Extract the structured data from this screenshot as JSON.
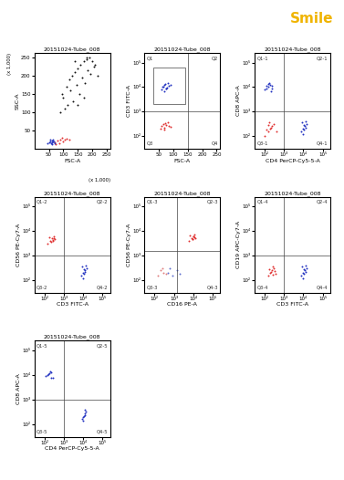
{
  "decoration_text": "Smile",
  "chart_data": [
    {
      "type": "scatter",
      "title": "20151024-Tube_008",
      "x_label": "FSC-A",
      "y_label": "SSC-A",
      "unit_label": "(x 1,000)",
      "log": false,
      "grid": false,
      "xlim": [
        0,
        262
      ],
      "ylim": [
        0,
        262
      ],
      "xticks": [
        50,
        100,
        150,
        200,
        250
      ],
      "yticks": [
        50,
        100,
        150,
        200,
        250
      ],
      "series": [
        {
          "color": "#111111",
          "x": [
            95,
            110,
            120,
            130,
            140,
            150,
            160,
            170,
            180,
            190,
            200,
            210,
            125,
            145,
            165,
            185,
            205,
            135,
            155,
            175,
            195,
            115,
            105,
            170,
            150,
            220,
            90,
            100,
            140,
            180
          ],
          "y": [
            150,
            170,
            190,
            200,
            210,
            220,
            230,
            240,
            245,
            250,
            240,
            230,
            160,
            175,
            195,
            215,
            225,
            130,
            150,
            180,
            205,
            120,
            110,
            140,
            120,
            200,
            100,
            140,
            240,
            250
          ]
        },
        {
          "color": "#e03030",
          "x": [
            70,
            80,
            90,
            100,
            110,
            85,
            95,
            75,
            105,
            120
          ],
          "y": [
            18,
            22,
            25,
            20,
            28,
            15,
            30,
            12,
            24,
            26
          ]
        },
        {
          "color": "#2030c0",
          "x": [
            45,
            50,
            55,
            58,
            60,
            62,
            65,
            68,
            70,
            55,
            60,
            65
          ],
          "y": [
            15,
            18,
            20,
            14,
            22,
            17,
            19,
            21,
            16,
            24,
            12,
            26
          ]
        }
      ]
    },
    {
      "type": "scatter",
      "title": "20151024-Tube_008",
      "x_label": "FSC-A",
      "y_label": "CD3 FITC-A",
      "log": "y",
      "grid": false,
      "xlim": [
        0,
        262
      ],
      "ylim": [
        30,
        250000
      ],
      "xticks": [
        50,
        100,
        150,
        200,
        250
      ],
      "yticks": [
        {
          "value": 100,
          "label": "10²"
        },
        {
          "value": 1000,
          "label": "10³"
        },
        {
          "value": 10000,
          "label": "10⁴"
        },
        {
          "value": 100000,
          "label": "10⁵"
        }
      ],
      "quadrant": [
        150,
        1000
      ],
      "gate": {
        "x": [
          30,
          140
        ],
        "y": [
          2000,
          60000
        ]
      },
      "quadrant_labels": [
        "Q1",
        "Q2",
        "Q3",
        "Q4"
      ],
      "series": [
        {
          "color": "#2030c0",
          "x": [
            60,
            65,
            70,
            75,
            80,
            85,
            68,
            72,
            78,
            62,
            90,
            74
          ],
          "y": [
            8000,
            10000,
            12000,
            9000,
            15000,
            11000,
            7000,
            13000,
            9500,
            10500,
            12500,
            8500
          ]
        },
        {
          "color": "#e03030",
          "x": [
            55,
            60,
            65,
            70,
            75,
            80,
            85,
            68,
            72,
            90
          ],
          "y": [
            200,
            250,
            300,
            220,
            280,
            350,
            260,
            180,
            320,
            240
          ]
        }
      ]
    },
    {
      "type": "scatter",
      "title": "20151024-Tube_008",
      "x_label": "CD4 PerCP-Cy5-5-A",
      "y_label": "CD8 APC-A",
      "log": true,
      "grid": false,
      "xlim": [
        30,
        250000
      ],
      "ylim": [
        30,
        250000
      ],
      "xticks": [
        {
          "value": 100,
          "label": "10²"
        },
        {
          "value": 1000,
          "label": "10³"
        },
        {
          "value": 10000,
          "label": "10⁴"
        },
        {
          "value": 100000,
          "label": "10⁵"
        }
      ],
      "yticks": [
        {
          "value": 100,
          "label": "10²"
        },
        {
          "value": 1000,
          "label": "10³"
        },
        {
          "value": 10000,
          "label": "10⁴"
        },
        {
          "value": 100000,
          "label": "10⁵"
        }
      ],
      "quadrant": [
        1000,
        1000
      ],
      "quadrant_labels": [
        "Q1-1",
        "Q2-1",
        "Q3-1",
        "Q4-1"
      ],
      "series": [
        {
          "color": "#e03030",
          "x": [
            100,
            150,
            200,
            250,
            300,
            180,
            130,
            220,
            160,
            400
          ],
          "y": [
            100,
            150,
            200,
            250,
            300,
            350,
            180,
            220,
            280,
            160
          ]
        },
        {
          "color": "#2030c0",
          "x": [
            100,
            150,
            200,
            250,
            180,
            130,
            220,
            160,
            120,
            240
          ],
          "y": [
            8000,
            10000,
            12000,
            9000,
            15000,
            11000,
            7000,
            13000,
            9000,
            11000
          ]
        },
        {
          "color": "#2030c0",
          "x": [
            8000,
            10000,
            12000,
            15000,
            9000,
            11000,
            13000,
            10500,
            9500,
            14000
          ],
          "y": [
            150,
            200,
            250,
            300,
            350,
            180,
            220,
            280,
            120,
            400
          ]
        }
      ]
    },
    {
      "type": "scatter",
      "title": "20151024-Tube_008",
      "x_label": "CD3 FITC-A",
      "y_label": "CD56 PE-Cy7-A",
      "log": true,
      "grid": false,
      "xlim": [
        30,
        250000
      ],
      "ylim": [
        30,
        250000
      ],
      "xticks": [
        {
          "value": 100,
          "label": "10²"
        },
        {
          "value": 1000,
          "label": "10³"
        },
        {
          "value": 10000,
          "label": "10⁴"
        },
        {
          "value": 100000,
          "label": "10⁵"
        }
      ],
      "yticks": [
        {
          "value": 100,
          "label": "10²"
        },
        {
          "value": 1000,
          "label": "10³"
        },
        {
          "value": 10000,
          "label": "10⁴"
        },
        {
          "value": 100000,
          "label": "10⁵"
        }
      ],
      "quadrant": [
        1000,
        1000
      ],
      "quadrant_labels": [
        "Q1-2",
        "Q2-2",
        "Q3-2",
        "Q4-2"
      ],
      "series": [
        {
          "color": "#e03030",
          "x": [
            150,
            200,
            250,
            300,
            350,
            220,
            180,
            280,
            260,
            320
          ],
          "y": [
            3000,
            4000,
            5000,
            6000,
            4500,
            3500,
            5500,
            4200,
            3800,
            5000
          ]
        },
        {
          "color": "#2030c0",
          "x": [
            8000,
            10000,
            12000,
            15000,
            9000,
            11000,
            13000,
            10500,
            9500,
            14000
          ],
          "y": [
            150,
            200,
            250,
            300,
            350,
            180,
            220,
            280,
            120,
            400
          ]
        }
      ]
    },
    {
      "type": "scatter",
      "title": "20151024-Tube_008",
      "x_label": "CD16 PE-A",
      "y_label": "CD56 PE-Cy7-A",
      "log": true,
      "grid": false,
      "xlim": [
        30,
        250000
      ],
      "ylim": [
        30,
        250000
      ],
      "xticks": [
        {
          "value": 100,
          "label": "10²"
        },
        {
          "value": 1000,
          "label": "10³"
        },
        {
          "value": 10000,
          "label": "10⁴"
        },
        {
          "value": 100000,
          "label": "10⁵"
        }
      ],
      "yticks": [
        {
          "value": 100,
          "label": "10²"
        },
        {
          "value": 1000,
          "label": "10³"
        },
        {
          "value": 10000,
          "label": "10⁴"
        },
        {
          "value": 100000,
          "label": "10⁵"
        }
      ],
      "quadrant": [
        1500,
        1500
      ],
      "quadrant_labels": [
        "Q1-3",
        "Q2-3",
        "Q3-3",
        "Q4-3"
      ],
      "series": [
        {
          "color": "#e03030",
          "x": [
            6000,
            8000,
            10000,
            12000,
            9000,
            11000,
            7000,
            13000,
            9500,
            10500
          ],
          "y": [
            4000,
            5000,
            6000,
            7000,
            4500,
            5500,
            6500,
            5200,
            4800,
            6000
          ]
        },
        {
          "color": "#e08080",
          "x": [
            150,
            200,
            300,
            250,
            400
          ],
          "y": [
            150,
            250,
            200,
            300,
            180
          ]
        },
        {
          "color": "#6070d0",
          "x": [
            500,
            800,
            1500,
            2000,
            600
          ],
          "y": [
            200,
            150,
            250,
            180,
            300
          ]
        }
      ]
    },
    {
      "type": "scatter",
      "title": "20151024-Tube_008",
      "x_label": "CD3 FITC-A",
      "y_label": "CD19 APC-Cy7-A",
      "log": true,
      "grid": false,
      "xlim": [
        30,
        250000
      ],
      "ylim": [
        30,
        250000
      ],
      "xticks": [
        {
          "value": 100,
          "label": "10²"
        },
        {
          "value": 1000,
          "label": "10³"
        },
        {
          "value": 10000,
          "label": "10⁴"
        },
        {
          "value": 100000,
          "label": "10⁵"
        }
      ],
      "yticks": [
        {
          "value": 100,
          "label": "10²"
        },
        {
          "value": 1000,
          "label": "10³"
        },
        {
          "value": 10000,
          "label": "10⁴"
        },
        {
          "value": 100000,
          "label": "10⁵"
        }
      ],
      "quadrant": [
        1000,
        1000
      ],
      "quadrant_labels": [
        "Q1-4",
        "Q2-4",
        "Q3-4",
        "Q4-4"
      ],
      "series": [
        {
          "color": "#e03030",
          "x": [
            150,
            200,
            250,
            300,
            350,
            220,
            180,
            280,
            260,
            320
          ],
          "y": [
            150,
            200,
            250,
            300,
            180,
            220,
            280,
            350,
            160,
            240
          ]
        },
        {
          "color": "#2030c0",
          "x": [
            8000,
            10000,
            12000,
            15000,
            9000,
            11000,
            13000,
            10500,
            9500,
            14000
          ],
          "y": [
            150,
            200,
            250,
            300,
            350,
            180,
            220,
            280,
            120,
            400
          ]
        }
      ]
    },
    {
      "type": "scatter",
      "title": "20151024-Tube_008",
      "x_label": "CD4 PerCP-Cy5-5-A",
      "y_label": "CD8 APC-A",
      "log": true,
      "grid": false,
      "xlim": [
        30,
        250000
      ],
      "ylim": [
        30,
        250000
      ],
      "xticks": [
        {
          "value": 100,
          "label": "10²"
        },
        {
          "value": 1000,
          "label": "10³"
        },
        {
          "value": 10000,
          "label": "10⁴"
        },
        {
          "value": 100000,
          "label": "10⁵"
        }
      ],
      "yticks": [
        {
          "value": 100,
          "label": "10²"
        },
        {
          "value": 1000,
          "label": "10³"
        },
        {
          "value": 10000,
          "label": "10⁴"
        },
        {
          "value": 100000,
          "label": "10⁵"
        }
      ],
      "quadrant": [
        1000,
        1000
      ],
      "quadrant_labels": [
        "Q1-5",
        "Q2-5",
        "Q3-5",
        "Q4-5"
      ],
      "series": [
        {
          "color": "#2030c0",
          "x": [
            110,
            160,
            210,
            260,
            190,
            140,
            230,
            170
          ],
          "y": [
            9000,
            11000,
            13000,
            8000,
            14000,
            10000,
            7500,
            12000
          ]
        },
        {
          "color": "#2030c0",
          "x": [
            9000,
            11000,
            13000,
            14000,
            10000,
            12000,
            9500,
            12500
          ],
          "y": [
            160,
            210,
            260,
            320,
            190,
            230,
            140,
            380
          ]
        }
      ]
    }
  ]
}
